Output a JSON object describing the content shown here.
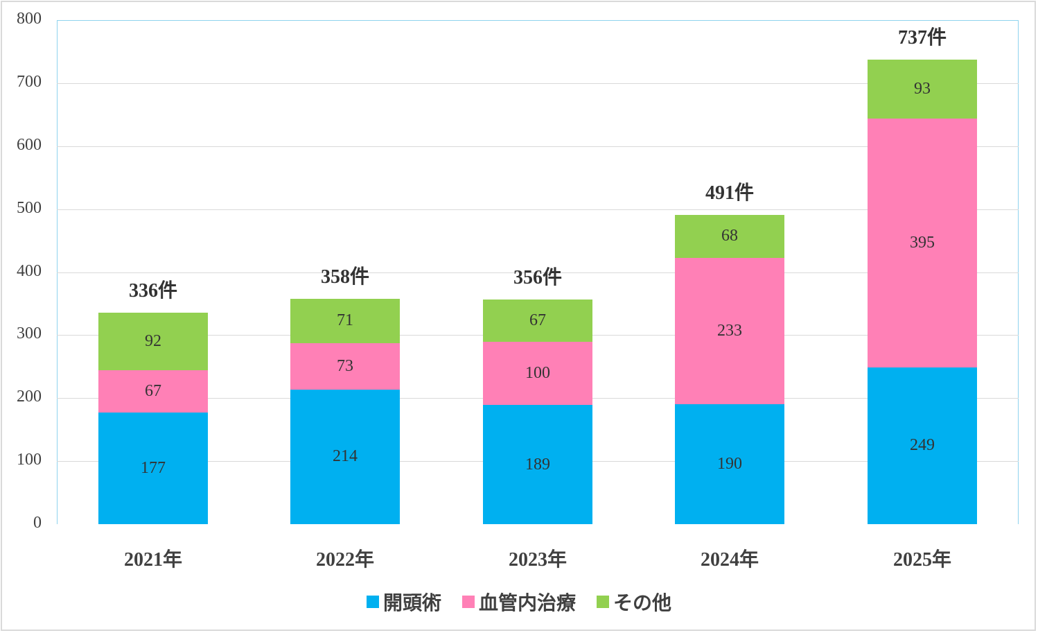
{
  "chart_data": {
    "type": "bar",
    "stacked": true,
    "title": "",
    "xlabel": "",
    "ylabel": "",
    "ylim": [
      0,
      800
    ],
    "yticks": [
      0,
      100,
      200,
      300,
      400,
      500,
      600,
      700,
      800
    ],
    "grid": true,
    "legend_position": "bottom",
    "categories": [
      "2021年",
      "2022年",
      "2023年",
      "2024年",
      "2025年"
    ],
    "series": [
      {
        "name": "開頭術",
        "color": "#00b0f0",
        "values": [
          177,
          214,
          189,
          190,
          249
        ]
      },
      {
        "name": "血管内治療",
        "color": "#ff80b6",
        "values": [
          67,
          73,
          100,
          233,
          395
        ]
      },
      {
        "name": "その他",
        "color": "#92d050",
        "values": [
          92,
          71,
          67,
          68,
          93
        ]
      }
    ],
    "totals": [
      336,
      358,
      356,
      491,
      737
    ],
    "total_labels": [
      "336件",
      "358件",
      "356件",
      "491件",
      "737件"
    ]
  }
}
